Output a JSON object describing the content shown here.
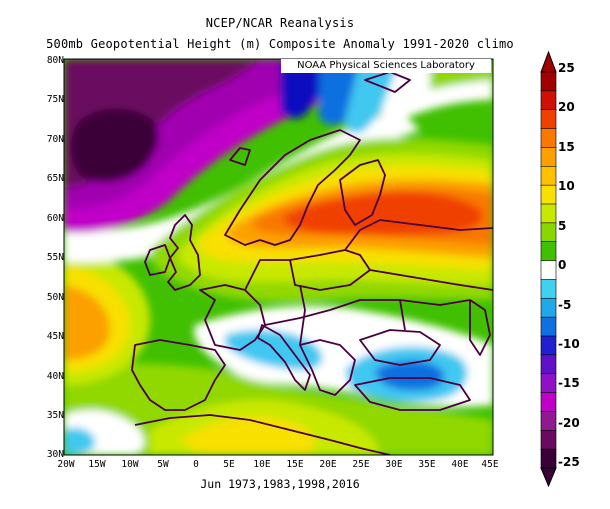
{
  "title": {
    "line1": "NCEP/NCAR Reanalysis",
    "line2": "500mb Geopotential Height (m) Composite Anomaly 1991-2020 climo"
  },
  "credit": "NOAA Physical Sciences Laboratory",
  "caption": "Jun 1973,1983,1998,2016",
  "axes": {
    "lat_labels": [
      "80N",
      "75N",
      "70N",
      "65N",
      "60N",
      "55N",
      "50N",
      "45N",
      "40N",
      "35N",
      "30N"
    ],
    "lon_labels": [
      "20W",
      "15W",
      "10W",
      "5W",
      "0",
      "5E",
      "10E",
      "15E",
      "20E",
      "25E",
      "30E",
      "35E",
      "40E",
      "45E"
    ],
    "lat_range": [
      30,
      80
    ],
    "lon_range": [
      -20,
      45
    ]
  },
  "colorbar": {
    "labels": [
      "25",
      "20",
      "15",
      "10",
      "5",
      "0",
      "-5",
      "-10",
      "-15",
      "-20",
      "-25"
    ],
    "colors": [
      "#a00000",
      "#d01000",
      "#f04000",
      "#f87800",
      "#fca000",
      "#ffc000",
      "#f8e000",
      "#c8e800",
      "#88d800",
      "#40c000",
      "#ffffff",
      "#40d0f0",
      "#20a8e8",
      "#1070e0",
      "#2020d0",
      "#6010c8",
      "#9010c8",
      "#c000c8",
      "#901890",
      "#6a0a60",
      "#3a0038"
    ]
  },
  "map": {
    "colors": {
      "purple_dark": "#3a0038",
      "purple_mid": "#6a0a60",
      "purple": "#a000b0",
      "violet": "#c000c8",
      "blue_dark": "#1010c0",
      "blue": "#1070e0",
      "cyan": "#40c8f0",
      "white": "#ffffff",
      "green": "#40c000",
      "lime": "#90d800",
      "yellow_green": "#c8e800",
      "yellow": "#f8e000",
      "orange_light": "#fca000",
      "orange": "#f87800",
      "red_orange": "#f04000",
      "coast": "#4a0040"
    }
  }
}
